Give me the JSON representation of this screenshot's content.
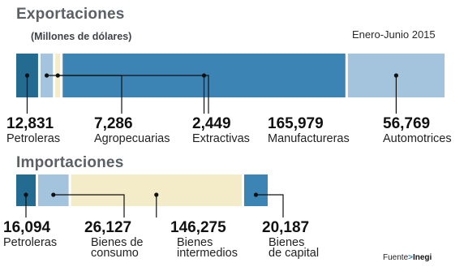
{
  "exportaciones": {
    "title": "Exportaciones",
    "subtitle": "(Millones de dólares)",
    "period": "Enero-Junio 2015"
  },
  "importaciones": {
    "title": "Importaciones"
  },
  "source": {
    "prefix": "Fuente",
    "name": "Inegi"
  },
  "colors": {
    "dark_blue": "#246b91",
    "mid_blue": "#3b84b4",
    "light_blue": "#a4c3dd",
    "beige": "#f4ebc8"
  },
  "chart_data": [
    {
      "type": "bar",
      "orientation": "horizontal-stacked",
      "title": "Exportaciones",
      "subtitle": "(Millones de dólares)",
      "categories": [
        "Petroleras",
        "Agropecuarias",
        "Extractivas",
        "Manufactureras",
        "Automotrices"
      ],
      "values": [
        12831,
        7286,
        2449,
        165979,
        56769
      ],
      "value_labels": [
        "12,831",
        "7,286",
        "2,449",
        "165,979",
        "56,769"
      ],
      "category_label_lines": [
        [
          "Petroleras"
        ],
        [
          "Agropecuarias"
        ],
        [
          "Extractivas"
        ],
        [
          "Manufactureras"
        ],
        [
          "Automotrices"
        ]
      ],
      "colors": [
        "#246b91",
        "#a4c3dd",
        "#f4ebc8",
        "#3b84b4",
        "#a4c3dd"
      ]
    },
    {
      "type": "bar",
      "orientation": "horizontal-stacked",
      "title": "Importaciones",
      "categories": [
        "Petroleras",
        "Bienes de consumo",
        "Bienes intermedios",
        "Bienes de capital"
      ],
      "values": [
        16094,
        26127,
        146275,
        20187
      ],
      "value_labels": [
        "16,094",
        "26,127",
        "146,275",
        "20,187"
      ],
      "category_label_lines": [
        [
          "Petroleras"
        ],
        [
          "Bienes de",
          "consumo"
        ],
        [
          "Bienes",
          "intermedios"
        ],
        [
          "Bienes",
          "de capital"
        ]
      ],
      "colors": [
        "#246b91",
        "#a4c3dd",
        "#f4ebc8",
        "#3b84b4"
      ]
    }
  ]
}
